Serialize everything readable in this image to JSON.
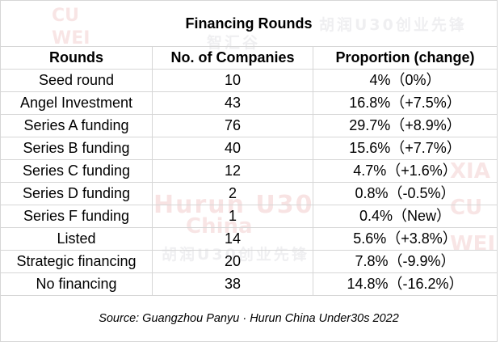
{
  "table": {
    "title": "Financing Rounds",
    "headers": [
      "Rounds",
      "No. of Companies",
      "Proportion (change)"
    ],
    "rows": [
      {
        "round": "Seed round",
        "companies": "10",
        "proportion": "4%（0%）"
      },
      {
        "round": "Angel Investment",
        "companies": "43",
        "proportion": "16.8%（+7.5%）"
      },
      {
        "round": "Series A funding",
        "companies": "76",
        "proportion": "29.7%（+8.9%）"
      },
      {
        "round": "Series B funding",
        "companies": "40",
        "proportion": "15.6%（+7.7%）"
      },
      {
        "round": "Series C funding",
        "companies": "12",
        "proportion": "4.7%（+1.6%）"
      },
      {
        "round": "Series D funding",
        "companies": "2",
        "proportion": "0.8%（-0.5%）"
      },
      {
        "round": "Series F funding",
        "companies": "1",
        "proportion": "0.4%（New）"
      },
      {
        "round": "Listed",
        "companies": "14",
        "proportion": "5.6%（+3.8%）"
      },
      {
        "round": "Strategic financing",
        "companies": "20",
        "proportion": "7.8%（-9.9%）"
      },
      {
        "round": "No financing",
        "companies": "38",
        "proportion": "14.8%（-16.2%）"
      }
    ],
    "source": "Source: Guangzhou Panyu · Hurun China Under30s 2022"
  },
  "watermark": {
    "text_en": "Hurun U30",
    "text_en2": "China",
    "text_cn": "胡润U30创业先锋",
    "text_cn_brand": "智汇谷",
    "color": "#c82828"
  }
}
